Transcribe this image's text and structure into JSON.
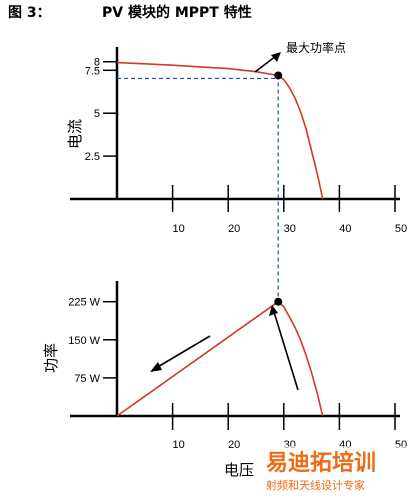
{
  "figure": {
    "label": "图 3：",
    "title": "PV 模块的 MPPT 特性"
  },
  "watermark": {
    "main": "易迪拓培训",
    "sub": "射频和天线设计专家"
  },
  "colors": {
    "curve": "#d0392b",
    "guide": "#1f4ea8",
    "axis": "#000000",
    "watermark": "#ef6a12"
  },
  "chart_data": [
    {
      "type": "line",
      "title": "",
      "ylabel": "电流",
      "xlabel": "",
      "xlim": [
        0,
        50
      ],
      "ylim": [
        0,
        8.8
      ],
      "x_ticks": [
        10,
        20,
        30,
        40,
        50
      ],
      "y_ticks": [
        2.5,
        5,
        7.5,
        8
      ],
      "y_tick_labels": [
        "2.5",
        "5",
        "7.5",
        "8"
      ],
      "series": [
        {
          "x": [
            0,
            5,
            10,
            15,
            20,
            25,
            29,
            30,
            31,
            32,
            33,
            34,
            35,
            36,
            37
          ],
          "y": [
            7.95,
            7.88,
            7.8,
            7.7,
            7.6,
            7.42,
            7.2,
            6.95,
            6.5,
            5.9,
            5.1,
            4.1,
            2.8,
            1.5,
            0
          ]
        }
      ],
      "annotations": [
        {
          "text": "最大功率点",
          "x": 29,
          "y": 7.2,
          "marker": "dot",
          "guides": true
        }
      ]
    },
    {
      "type": "line",
      "title": "",
      "ylabel": "功率",
      "xlabel": "电压",
      "xlim": [
        0,
        50
      ],
      "ylim": [
        0,
        250
      ],
      "x_ticks": [
        10,
        20,
        30,
        40,
        50
      ],
      "y_ticks": [
        75,
        150,
        225
      ],
      "y_tick_labels": [
        "75 W",
        "150 W",
        "225 W"
      ],
      "series": [
        {
          "x": [
            0,
            29,
            30,
            31,
            32,
            33,
            34,
            35,
            36,
            37
          ],
          "y": [
            0,
            225,
            215,
            195,
            175,
            150,
            120,
            85,
            45,
            0
          ]
        }
      ],
      "annotations": [
        {
          "text": "",
          "x": 29,
          "y": 225,
          "marker": "dot",
          "guides": false
        }
      ]
    }
  ]
}
